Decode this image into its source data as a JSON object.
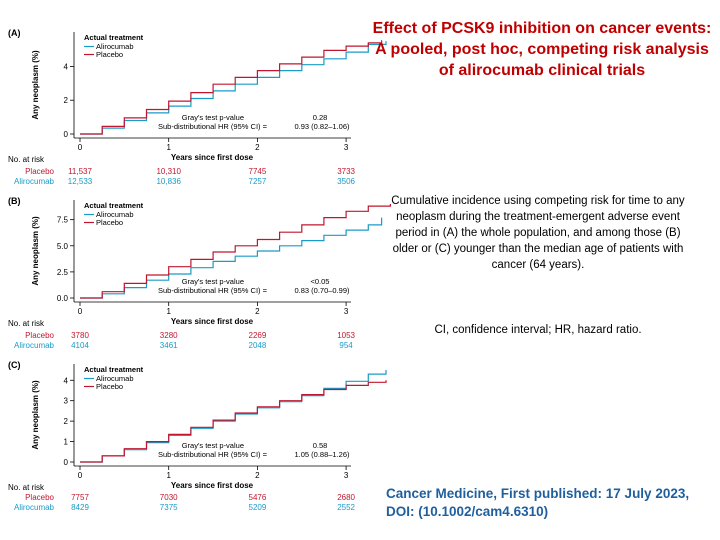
{
  "headline": "Effect of PCSK9 inhibition on cancer events: A pooled, post hoc, competing risk analysis of alirocumab clinical trials",
  "caption": "Cumulative incidence using competing risk for time to any neoplasm during the treatment-emergent adverse event period in (A) the whole population, and among those (B) older or (C) younger than the median age of patients with cancer (64 years).",
  "abbreviations": "CI, confidence interval; HR, hazard ratio.",
  "citation": {
    "line1": "Cancer Medicine, First published: 17 July 2023,",
    "line2": "DOI: (10.1002/cam4.6310)"
  },
  "colors": {
    "alirocumab": "#1a9bc7",
    "placebo": "#c0172f",
    "text_placebo": "#c0172f",
    "text_alirocumab": "#1a9bc7"
  },
  "chart_data": [
    {
      "type": "line",
      "panel": "(A)",
      "xlabel": "Years since first dose",
      "ylabel": "Any neoplasm (%)",
      "xlim": [
        0,
        3.5
      ],
      "ylim": [
        0,
        5.8
      ],
      "xticks": [
        0,
        1,
        2,
        3
      ],
      "yticks": [
        0,
        2,
        4
      ],
      "ytick_labels": [
        "0",
        "2",
        "4"
      ],
      "legend_title": "Actual treatment",
      "legend_labels": [
        "Alirocumab",
        "Placebo"
      ],
      "legend_position": "top-left",
      "stats_labels": [
        "Gray's test p-value",
        "Sub-distributional HR (95% CI) ="
      ],
      "stats_values": [
        "0.28",
        "0.93 (0.82–1.06)"
      ],
      "series": [
        {
          "name": "Alirocumab",
          "color": "#1a9bc7",
          "x": [
            0,
            0.25,
            0.5,
            0.75,
            1.0,
            1.25,
            1.5,
            1.75,
            2.0,
            2.25,
            2.5,
            2.75,
            3.0,
            3.25,
            3.45
          ],
          "y": [
            0,
            0.35,
            0.8,
            1.25,
            1.65,
            2.1,
            2.55,
            2.95,
            3.35,
            3.75,
            4.1,
            4.45,
            4.85,
            5.3,
            5.5
          ]
        },
        {
          "name": "Placebo",
          "color": "#c0172f",
          "x": [
            0,
            0.25,
            0.5,
            0.75,
            1.0,
            1.25,
            1.5,
            1.75,
            2.0,
            2.25,
            2.5,
            2.75,
            3.0,
            3.25,
            3.4
          ],
          "y": [
            0,
            0.45,
            0.95,
            1.45,
            1.95,
            2.45,
            2.95,
            3.35,
            3.75,
            4.15,
            4.55,
            4.95,
            5.2,
            5.4,
            5.55
          ]
        }
      ],
      "at_risk_header": "No. at risk",
      "at_risk": [
        {
          "name": "Placebo",
          "values": [
            "11,537",
            "10,310",
            "7745",
            "3733"
          ]
        },
        {
          "name": "Alirocumab",
          "values": [
            "12,533",
            "10,836",
            "7257",
            "3506"
          ]
        }
      ]
    },
    {
      "type": "line",
      "panel": "(B)",
      "xlabel": "Years since first dose",
      "ylabel": "Any neoplasm (%)",
      "xlim": [
        0,
        3.5
      ],
      "ylim": [
        0,
        9.0
      ],
      "xticks": [
        0,
        1,
        2,
        3
      ],
      "yticks": [
        0,
        2.5,
        5,
        7.5
      ],
      "ytick_labels": [
        "0.0",
        "2.5",
        "5.0",
        "7.5"
      ],
      "legend_title": "Actual treatment",
      "legend_labels": [
        "Alirocumab",
        "Placebo"
      ],
      "legend_position": "top-left",
      "stats_labels": [
        "Gray's test p-value",
        "Sub-distributional HR (95% CI) ="
      ],
      "stats_values": [
        "<0.05",
        "0.83 (0.70–0.99)"
      ],
      "series": [
        {
          "name": "Alirocumab",
          "color": "#1a9bc7",
          "x": [
            0,
            0.25,
            0.5,
            0.75,
            1.0,
            1.25,
            1.5,
            1.75,
            2.0,
            2.25,
            2.5,
            2.75,
            3.0,
            3.25,
            3.4
          ],
          "y": [
            0,
            0.4,
            1.0,
            1.7,
            2.3,
            2.9,
            3.5,
            4.0,
            4.5,
            5.0,
            5.5,
            6.0,
            6.5,
            7.0,
            7.7
          ]
        },
        {
          "name": "Placebo",
          "color": "#c0172f",
          "x": [
            0,
            0.25,
            0.5,
            0.75,
            1.0,
            1.25,
            1.5,
            1.75,
            2.0,
            2.25,
            2.5,
            2.75,
            3.0,
            3.25,
            3.5
          ],
          "y": [
            0,
            0.6,
            1.4,
            2.2,
            3.0,
            3.7,
            4.4,
            5.0,
            5.6,
            6.3,
            7.0,
            7.7,
            8.3,
            8.8,
            9.0
          ]
        }
      ],
      "at_risk_header": "No. at risk",
      "at_risk": [
        {
          "name": "Placebo",
          "values": [
            "3780",
            "3280",
            "2269",
            "1053"
          ]
        },
        {
          "name": "Alirocumab",
          "values": [
            "4104",
            "3461",
            "2048",
            "954"
          ]
        }
      ]
    },
    {
      "type": "line",
      "panel": "(C)",
      "xlabel": "Years since first dose",
      "ylabel": "Any neoplasm (%)",
      "xlim": [
        0,
        3.5
      ],
      "ylim": [
        0,
        4.6
      ],
      "xticks": [
        0,
        1,
        2,
        3
      ],
      "yticks": [
        0,
        1,
        2,
        3,
        4
      ],
      "ytick_labels": [
        "0",
        "1",
        "2",
        "3",
        "4"
      ],
      "legend_title": "Actual treatment",
      "legend_labels": [
        "Alirocumab",
        "Placebo"
      ],
      "legend_position": "top-left",
      "stats_labels": [
        "Gray's test p-value",
        "Sub-distributional HR (95% CI) ="
      ],
      "stats_values": [
        "0.58",
        "1.05 (0.88–1.26)"
      ],
      "series": [
        {
          "name": "Alirocumab",
          "color": "#1a9bc7",
          "x": [
            0,
            0.25,
            0.5,
            0.75,
            1.0,
            1.25,
            1.5,
            1.75,
            2.0,
            2.25,
            2.5,
            2.75,
            3.0,
            3.25,
            3.45
          ],
          "y": [
            0,
            0.3,
            0.6,
            0.95,
            1.3,
            1.65,
            2.0,
            2.35,
            2.65,
            2.95,
            3.25,
            3.6,
            3.95,
            4.3,
            4.5
          ]
        },
        {
          "name": "Placebo",
          "color": "#c0172f",
          "x": [
            0,
            0.25,
            0.5,
            0.75,
            1.0,
            1.25,
            1.5,
            1.75,
            2.0,
            2.25,
            2.5,
            2.75,
            3.0,
            3.25,
            3.45
          ],
          "y": [
            0,
            0.3,
            0.65,
            1.0,
            1.35,
            1.7,
            2.05,
            2.4,
            2.7,
            3.0,
            3.3,
            3.55,
            3.75,
            3.9,
            4.0
          ]
        }
      ],
      "at_risk_header": "No. at risk",
      "at_risk": [
        {
          "name": "Placebo",
          "values": [
            "7757",
            "7030",
            "5476",
            "2680"
          ]
        },
        {
          "name": "Alirocumab",
          "values": [
            "8429",
            "7375",
            "5209",
            "2552"
          ]
        }
      ]
    }
  ]
}
